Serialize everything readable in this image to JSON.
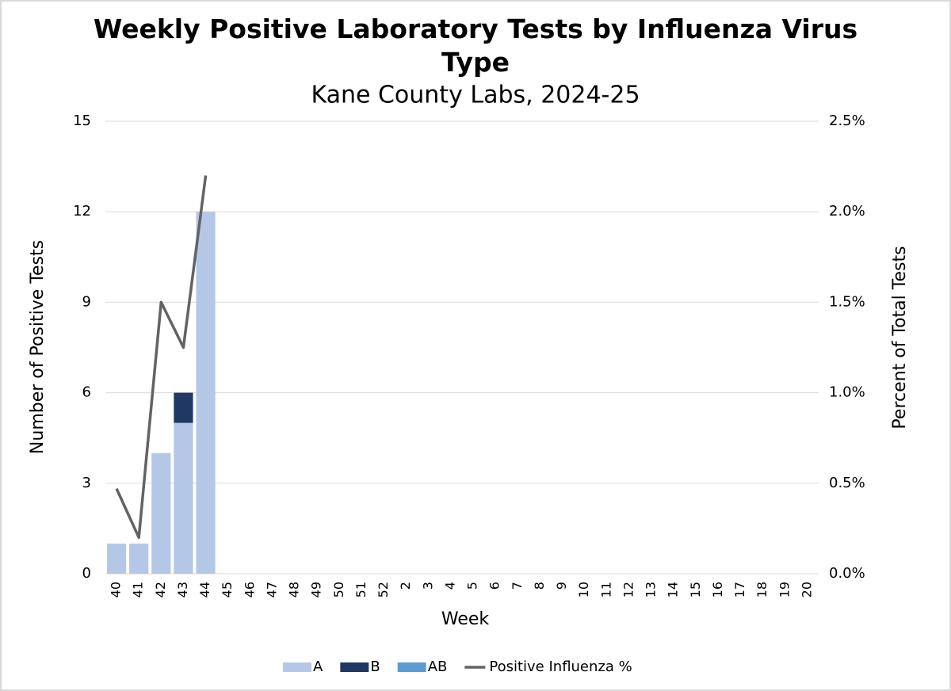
{
  "chart_data": {
    "type": "bar",
    "title": "Weekly Positive Laboratory Tests by Influenza Virus Type",
    "subtitle": "Kane County Labs, 2024-25",
    "x_label": "Week",
    "y_label": "Number of Positive Tests",
    "y2_label": "Percent of Total Tests",
    "categories": [
      "40",
      "41",
      "42",
      "43",
      "44",
      "45",
      "46",
      "47",
      "48",
      "49",
      "50",
      "51",
      "52",
      "2",
      "3",
      "4",
      "5",
      "6",
      "7",
      "8",
      "9",
      "10",
      "11",
      "12",
      "13",
      "14",
      "15",
      "16",
      "17",
      "18",
      "19",
      "20"
    ],
    "stacked": true,
    "series": [
      {
        "name": "A",
        "color": "#b4c7e7",
        "values": [
          1,
          1,
          4,
          5,
          12,
          null,
          null,
          null,
          null,
          null,
          null,
          null,
          null,
          null,
          null,
          null,
          null,
          null,
          null,
          null,
          null,
          null,
          null,
          null,
          null,
          null,
          null,
          null,
          null,
          null,
          null,
          null
        ]
      },
      {
        "name": "B",
        "color": "#1f3864",
        "values": [
          0,
          0,
          0,
          1,
          0,
          null,
          null,
          null,
          null,
          null,
          null,
          null,
          null,
          null,
          null,
          null,
          null,
          null,
          null,
          null,
          null,
          null,
          null,
          null,
          null,
          null,
          null,
          null,
          null,
          null,
          null,
          null
        ]
      },
      {
        "name": "AB",
        "color": "#5b9bd5",
        "values": [
          0,
          0,
          0,
          0,
          0,
          null,
          null,
          null,
          null,
          null,
          null,
          null,
          null,
          null,
          null,
          null,
          null,
          null,
          null,
          null,
          null,
          null,
          null,
          null,
          null,
          null,
          null,
          null,
          null,
          null,
          null,
          null
        ]
      },
      {
        "name": "Positive Influenza %",
        "type": "line",
        "axis": "y2",
        "color": "#636363",
        "values": [
          0.47,
          0.2,
          1.5,
          1.25,
          2.2,
          null,
          null,
          null,
          null,
          null,
          null,
          null,
          null,
          null,
          null,
          null,
          null,
          null,
          null,
          null,
          null,
          null,
          null,
          null,
          null,
          null,
          null,
          null,
          null,
          null,
          null,
          null
        ]
      }
    ],
    "ylim": [
      0,
      15
    ],
    "yticks": [
      0,
      3,
      6,
      9,
      12,
      15
    ],
    "y2lim": [
      0,
      2.5
    ],
    "y2ticks": [
      {
        "value": 0,
        "label": "0.0%"
      },
      {
        "value": 0.5,
        "label": "0.5%"
      },
      {
        "value": 1,
        "label": "1.0%"
      },
      {
        "value": 1.5,
        "label": "1.5%"
      },
      {
        "value": 2,
        "label": "2.0%"
      },
      {
        "value": 2.5,
        "label": "2.5%"
      }
    ],
    "grid": true,
    "legend": "bottom"
  }
}
